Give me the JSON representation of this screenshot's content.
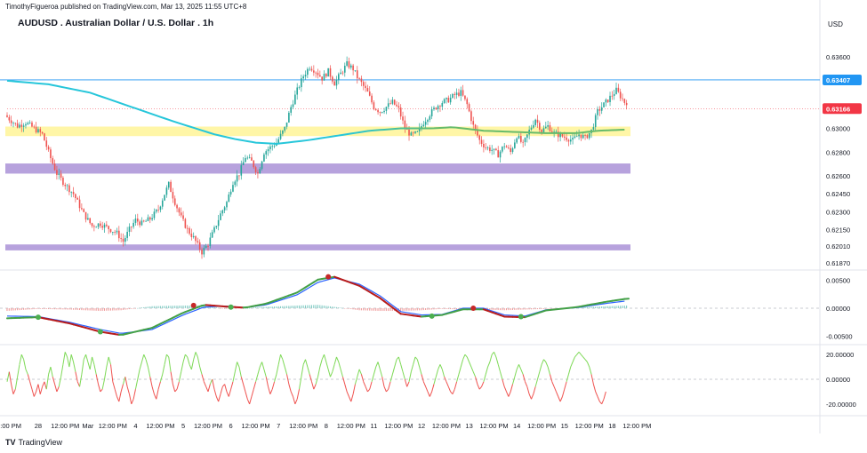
{
  "header": {
    "publisher": "TimothyFigueroa published on TradingView.com, Mar 13, 2025 11:55 UTC+8",
    "title": "AUDUSD . Australian Dollar / U.S. Dollar . 1h",
    "currency": "USD",
    "brand": "TradingView",
    "brand_logo": "TV"
  },
  "colors": {
    "up": "#26a69a",
    "down": "#ef5350",
    "ma_teal": "#26c6da",
    "ma_green": "#66bb6a",
    "yellow_zone": "#fff59d",
    "purple_zone": "#b39ddb",
    "hline": "#2196f3",
    "last_price": "#f23645",
    "macd_blue": "#2962ff",
    "macd_green": "#43a047",
    "macd_red": "#b71c1c",
    "osc_up": "#7ed957",
    "osc_down": "#ef5350"
  },
  "chart_data": [
    {
      "type": "candlestick",
      "symbol": "AUDUSD",
      "timeframe": "1h",
      "ylim": [
        0.6184,
        0.6372
      ],
      "price_axis": [
        "0.63600",
        "0.63407",
        "0.63166",
        "0.63000",
        "0.62800",
        "0.62600",
        "0.62450",
        "0.62300",
        "0.62150",
        "0.62010",
        "0.61870"
      ],
      "price_ticks_values": [
        0.636,
        0.63407,
        0.63166,
        0.63,
        0.628,
        0.626,
        0.6245,
        0.623,
        0.6215,
        0.6201,
        0.6187
      ],
      "horizontal_line": {
        "value": 0.63407,
        "label": "0.63407"
      },
      "last_price": {
        "value": 0.63166,
        "label": "0.63166"
      },
      "zones": [
        {
          "name": "yellow-zone",
          "from": 0.62935,
          "to": 0.63015
        },
        {
          "name": "purple-zone-upper",
          "from": 0.6262,
          "to": 0.62705
        },
        {
          "name": "purple-zone-lower",
          "from": 0.61975,
          "to": 0.62025
        }
      ],
      "close_path": [
        [
          0,
          0.6311
        ],
        [
          6,
          0.6302
        ],
        [
          10,
          0.6305
        ],
        [
          14,
          0.63
        ],
        [
          18,
          0.6295
        ],
        [
          22,
          0.6275
        ],
        [
          25,
          0.6262
        ],
        [
          28,
          0.6255
        ],
        [
          33,
          0.6245
        ],
        [
          38,
          0.6228
        ],
        [
          42,
          0.6218
        ],
        [
          46,
          0.622
        ],
        [
          50,
          0.6216
        ],
        [
          54,
          0.6212
        ],
        [
          57,
          0.6205
        ],
        [
          60,
          0.6215
        ],
        [
          63,
          0.6223
        ],
        [
          66,
          0.622
        ],
        [
          70,
          0.6224
        ],
        [
          74,
          0.6232
        ],
        [
          77,
          0.6245
        ],
        [
          79,
          0.6253
        ],
        [
          82,
          0.6238
        ],
        [
          85,
          0.6225
        ],
        [
          88,
          0.6215
        ],
        [
          91,
          0.6208
        ],
        [
          93,
          0.6202
        ],
        [
          95,
          0.6196
        ],
        [
          98,
          0.6203
        ],
        [
          101,
          0.6215
        ],
        [
          104,
          0.6228
        ],
        [
          107,
          0.6238
        ],
        [
          110,
          0.6255
        ],
        [
          113,
          0.6262
        ],
        [
          116,
          0.6276
        ],
        [
          119,
          0.6272
        ],
        [
          122,
          0.6262
        ],
        [
          125,
          0.628
        ],
        [
          128,
          0.6284
        ],
        [
          131,
          0.6288
        ],
        [
          135,
          0.63
        ],
        [
          138,
          0.6318
        ],
        [
          141,
          0.6332
        ],
        [
          144,
          0.6344
        ],
        [
          147,
          0.6352
        ],
        [
          150,
          0.6348
        ],
        [
          153,
          0.6342
        ],
        [
          156,
          0.6348
        ],
        [
          159,
          0.6338
        ],
        [
          162,
          0.6346
        ],
        [
          165,
          0.6354
        ],
        [
          168,
          0.635
        ],
        [
          170,
          0.6343
        ],
        [
          172,
          0.6338
        ],
        [
          175,
          0.633
        ],
        [
          178,
          0.6318
        ],
        [
          181,
          0.6314
        ],
        [
          184,
          0.6318
        ],
        [
          187,
          0.6322
        ],
        [
          190,
          0.6316
        ],
        [
          193,
          0.63
        ],
        [
          196,
          0.6294
        ],
        [
          199,
          0.6296
        ],
        [
          202,
          0.6305
        ],
        [
          205,
          0.6312
        ],
        [
          208,
          0.6318
        ],
        [
          211,
          0.6322
        ],
        [
          214,
          0.6324
        ],
        [
          217,
          0.6328
        ],
        [
          220,
          0.633
        ],
        [
          223,
          0.632
        ],
        [
          226,
          0.6302
        ],
        [
          229,
          0.629
        ],
        [
          232,
          0.6284
        ],
        [
          235,
          0.6282
        ],
        [
          238,
          0.6278
        ],
        [
          241,
          0.6286
        ],
        [
          244,
          0.628
        ],
        [
          247,
          0.6294
        ],
        [
          250,
          0.6286
        ],
        [
          253,
          0.6298
        ],
        [
          256,
          0.6308
        ],
        [
          259,
          0.6298
        ],
        [
          262,
          0.6302
        ],
        [
          265,
          0.6296
        ],
        [
          268,
          0.6294
        ],
        [
          271,
          0.6292
        ],
        [
          274,
          0.629
        ],
        [
          277,
          0.6295
        ],
        [
          280,
          0.6292
        ],
        [
          283,
          0.6298
        ],
        [
          286,
          0.6314
        ],
        [
          289,
          0.632
        ],
        [
          292,
          0.6326
        ],
        [
          295,
          0.6332
        ],
        [
          297,
          0.6327
        ],
        [
          299,
          0.6322
        ]
      ],
      "ma_slow": [
        [
          0,
          0.634
        ],
        [
          20,
          0.6337
        ],
        [
          40,
          0.633
        ],
        [
          60,
          0.6318
        ],
        [
          80,
          0.6306
        ],
        [
          100,
          0.6295
        ],
        [
          110,
          0.6291
        ],
        [
          120,
          0.6288
        ],
        [
          130,
          0.6287
        ],
        [
          145,
          0.629
        ],
        [
          160,
          0.6294
        ],
        [
          175,
          0.6298
        ],
        [
          190,
          0.63
        ],
        [
          205,
          0.63
        ],
        [
          215,
          0.6301
        ],
        [
          230,
          0.6298
        ],
        [
          245,
          0.6297
        ],
        [
          260,
          0.6296
        ],
        [
          275,
          0.6296
        ],
        [
          285,
          0.6298
        ],
        [
          299,
          0.6299
        ]
      ]
    },
    {
      "type": "line",
      "name": "macd",
      "ylim": [
        -0.0065,
        0.0065
      ],
      "axis": [
        "0.00500",
        "0.00000",
        "-0.00500"
      ],
      "axis_values": [
        0.005,
        0.0,
        -0.005
      ],
      "fast": [
        [
          0,
          -0.0018
        ],
        [
          15,
          -0.0016
        ],
        [
          30,
          -0.0027
        ],
        [
          45,
          -0.0042
        ],
        [
          55,
          -0.0048
        ],
        [
          70,
          -0.0035
        ],
        [
          85,
          -0.0008
        ],
        [
          95,
          0.0006
        ],
        [
          105,
          0.0003
        ],
        [
          115,
          0.0001
        ],
        [
          125,
          0.0008
        ],
        [
          140,
          0.0028
        ],
        [
          150,
          0.0051
        ],
        [
          158,
          0.0056
        ],
        [
          170,
          0.004
        ],
        [
          180,
          0.0018
        ],
        [
          190,
          -0.001
        ],
        [
          200,
          -0.0015
        ],
        [
          210,
          -0.0012
        ],
        [
          220,
          -0.0002
        ],
        [
          230,
          -0.0002
        ],
        [
          240,
          -0.0015
        ],
        [
          250,
          -0.0016
        ],
        [
          260,
          -0.0004
        ],
        [
          275,
          0.0002
        ],
        [
          290,
          0.0012
        ],
        [
          299,
          0.0017
        ]
      ],
      "signal": [
        [
          0,
          -0.0014
        ],
        [
          15,
          -0.0015
        ],
        [
          30,
          -0.0025
        ],
        [
          45,
          -0.0038
        ],
        [
          55,
          -0.0045
        ],
        [
          70,
          -0.0038
        ],
        [
          85,
          -0.0012
        ],
        [
          95,
          0.0002
        ],
        [
          105,
          0.0004
        ],
        [
          115,
          0.0001
        ],
        [
          125,
          0.0006
        ],
        [
          140,
          0.0024
        ],
        [
          150,
          0.0046
        ],
        [
          158,
          0.0054
        ],
        [
          170,
          0.0043
        ],
        [
          180,
          0.0022
        ],
        [
          190,
          -0.0006
        ],
        [
          200,
          -0.0012
        ],
        [
          210,
          -0.0011
        ],
        [
          220,
          0.0
        ],
        [
          230,
          0.0
        ],
        [
          240,
          -0.0012
        ],
        [
          250,
          -0.0014
        ],
        [
          260,
          -0.0003
        ],
        [
          275,
          0.0001
        ],
        [
          290,
          0.0009
        ],
        [
          299,
          0.0013
        ]
      ],
      "cross_points": [
        [
          15,
          -0.0016,
          "green"
        ],
        [
          45,
          -0.0042,
          "green"
        ],
        [
          90,
          0.0005,
          "red"
        ],
        [
          108,
          0.0002,
          "green"
        ],
        [
          155,
          0.0056,
          "red"
        ],
        [
          205,
          -0.0014,
          "green"
        ],
        [
          225,
          0.0,
          "red"
        ],
        [
          248,
          -0.0015,
          "green"
        ]
      ]
    },
    {
      "type": "line",
      "name": "oscillator",
      "ylim": [
        -28,
        28
      ],
      "axis": [
        "20.00000",
        "0.00000",
        "-20.00000"
      ],
      "axis_values": [
        20,
        0,
        -20
      ],
      "values": [
        -2,
        6,
        -4,
        -12,
        -8,
        2,
        12,
        20,
        16,
        8,
        4,
        -2,
        -8,
        -14,
        -10,
        -4,
        -12,
        -6,
        -2,
        -8,
        4,
        10,
        2,
        -4,
        -10,
        -6,
        2,
        12,
        22,
        18,
        10,
        20,
        14,
        6,
        -2,
        -6,
        4,
        16,
        20,
        14,
        8,
        18,
        12,
        4,
        -4,
        -10,
        -8,
        0,
        10,
        18,
        12,
        -2,
        -8,
        -14,
        -18,
        -10,
        -4,
        2,
        -6,
        -12,
        -20,
        -16,
        -8,
        0,
        8,
        14,
        20,
        16,
        10,
        2,
        -6,
        -12,
        -16,
        -8,
        -2,
        4,
        12,
        20,
        18,
        6,
        -4,
        -10,
        -8,
        -2,
        6,
        14,
        20,
        18,
        12,
        8,
        16,
        22,
        18,
        10,
        4,
        -2,
        -6,
        -10,
        -4,
        0,
        -8,
        -14,
        -18,
        -12,
        -6,
        -4,
        -10,
        -14,
        -8,
        -2,
        6,
        14,
        10,
        2,
        -4,
        -10,
        -16,
        -20,
        -14,
        -8,
        -2,
        4,
        10,
        14,
        8,
        2,
        -6,
        -12,
        -8,
        -2,
        4,
        12,
        20,
        16,
        10,
        4,
        -4,
        -10,
        -14,
        -20,
        -16,
        -8,
        2,
        12,
        16,
        10,
        4,
        -2,
        -8,
        -4,
        2,
        10,
        16,
        20,
        14,
        8,
        2,
        6,
        12,
        18,
        14,
        8,
        2,
        -4,
        -10,
        -14,
        -18,
        -12,
        -4,
        2,
        8,
        4,
        -2,
        -6,
        -10,
        -8,
        -2,
        4,
        10,
        14,
        8,
        2,
        -6,
        -10,
        -8,
        -2,
        4,
        10,
        16,
        18,
        12,
        6,
        0,
        -6,
        -2,
        6,
        12,
        18,
        16,
        10,
        4,
        -2,
        -6,
        -10,
        -14,
        -10,
        -4,
        2,
        8,
        12,
        8,
        2,
        -2,
        -6,
        -10,
        -12,
        -8,
        -2,
        4,
        10,
        16,
        20,
        18,
        14,
        10,
        6,
        2,
        -4,
        -8,
        -6,
        -2,
        4,
        10,
        14,
        20,
        22,
        18,
        12,
        6,
        0,
        -6,
        -10,
        -14,
        -10,
        -4,
        2,
        8,
        12,
        8,
        4,
        -2,
        -6,
        -12,
        -16,
        -12,
        -6,
        0,
        6,
        12,
        16,
        14,
        10,
        4,
        -2,
        -6,
        -10,
        -14,
        -18,
        -14,
        -8,
        -2,
        4,
        10,
        14,
        18,
        20,
        22,
        20,
        18,
        16,
        14,
        10,
        4,
        -4,
        -10,
        -14,
        -18,
        -20,
        -16,
        -10
      ]
    }
  ],
  "time_axis": [
    {
      "label": "12:00 PM",
      "i": 0
    },
    {
      "label": "28",
      "i": 15
    },
    {
      "label": "12:00 PM",
      "i": 28
    },
    {
      "label": "Mar",
      "i": 39
    },
    {
      "label": "12:00 PM",
      "i": 51
    },
    {
      "label": "4",
      "i": 62
    },
    {
      "label": "12:00 PM",
      "i": 74
    },
    {
      "label": "5",
      "i": 85
    },
    {
      "label": "12:00 PM",
      "i": 97
    },
    {
      "label": "6",
      "i": 108
    },
    {
      "label": "12:00 PM",
      "i": 120
    },
    {
      "label": "7",
      "i": 131
    },
    {
      "label": "12:00 PM",
      "i": 143
    },
    {
      "label": "8",
      "i": 154
    },
    {
      "label": "12:00 PM",
      "i": 166
    },
    {
      "label": "11",
      "i": 177
    },
    {
      "label": "12:00 PM",
      "i": 189
    },
    {
      "label": "12",
      "i": 200
    },
    {
      "label": "12:00 PM",
      "i": 212
    },
    {
      "label": "13",
      "i": 223
    },
    {
      "label": "12:00 PM",
      "i": 235
    },
    {
      "label": "14",
      "i": 246
    },
    {
      "label": "12:00 PM",
      "i": 258
    },
    {
      "label": "15",
      "i": 269
    },
    {
      "label": "12:00 PM",
      "i": 281
    },
    {
      "label": "18",
      "i": 292
    },
    {
      "label": "12:00 PM",
      "i": 304
    }
  ]
}
